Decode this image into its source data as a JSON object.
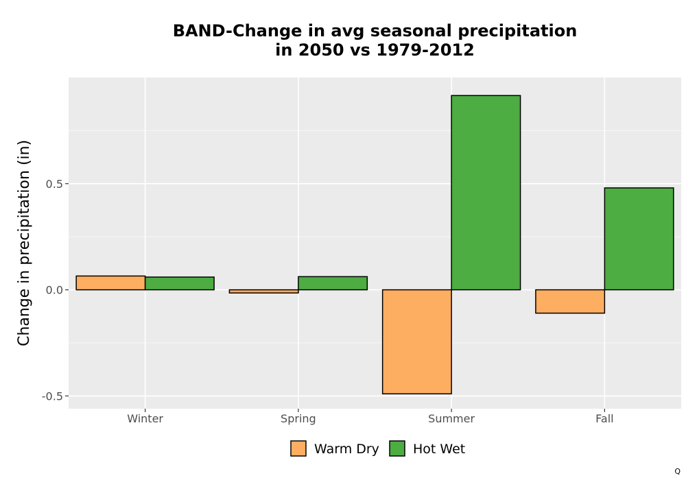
{
  "chart_data": {
    "type": "bar",
    "title_lines": [
      "BAND-Change in avg seasonal precipitation",
      "in 2050 vs 1979-2012"
    ],
    "xlabel": "",
    "ylabel": "Change in precipitation (in)",
    "categories": [
      "Winter",
      "Spring",
      "Summer",
      "Fall"
    ],
    "series": [
      {
        "name": "Warm Dry",
        "color": "#FDAE61",
        "values": [
          0.065,
          -0.015,
          -0.49,
          -0.11
        ]
      },
      {
        "name": "Hot Wet",
        "color": "#4DAC42",
        "values": [
          0.06,
          0.062,
          0.915,
          0.48
        ]
      }
    ],
    "ylim": [
      -0.56,
      1.0
    ],
    "yticks": [
      -0.5,
      0.0,
      0.5
    ],
    "ytick_labels": [
      "-0.5",
      "0.0",
      "0.5"
    ],
    "grid": true,
    "legend_position": "bottom"
  },
  "corner_mark": "Q"
}
